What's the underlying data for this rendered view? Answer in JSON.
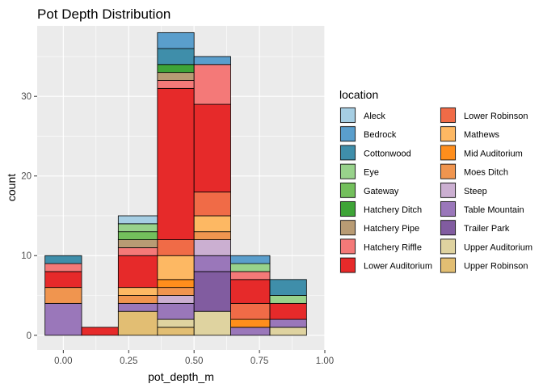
{
  "chart_data": {
    "type": "bar",
    "subtype": "stacked-histogram",
    "title": "Pot Depth Distribution",
    "xlabel": "pot_depth_m",
    "ylabel": "count",
    "xlim": [
      -0.1,
      1.0
    ],
    "ylim": [
      -1.85,
      38.85
    ],
    "x_ticks": [
      {
        "value": 0.0,
        "label": "0.00"
      },
      {
        "value": 0.25,
        "label": "0.25"
      },
      {
        "value": 0.5,
        "label": "0.50"
      },
      {
        "value": 0.75,
        "label": "0.75"
      },
      {
        "value": 1.0,
        "label": "1.00"
      }
    ],
    "y_ticks": [
      {
        "value": 0,
        "label": "0"
      },
      {
        "value": 10,
        "label": "10"
      },
      {
        "value": 20,
        "label": "20"
      },
      {
        "value": 30,
        "label": "30"
      }
    ],
    "grid": true,
    "legend_title": "location",
    "legend_position": "right",
    "legend_columns": 2,
    "series": [
      {
        "name": "Aleck",
        "color": "#A6CEE3"
      },
      {
        "name": "Bedrock",
        "color": "#5A9ECC"
      },
      {
        "name": "Cottonwood",
        "color": "#3F8EAA"
      },
      {
        "name": "Eye",
        "color": "#98D28B"
      },
      {
        "name": "Gateway",
        "color": "#73BF5C"
      },
      {
        "name": "Hatchery Ditch",
        "color": "#3EA437"
      },
      {
        "name": "Hatchery Pipe",
        "color": "#B89B74"
      },
      {
        "name": "Hatchery Riffle",
        "color": "#F47978"
      },
      {
        "name": "Lower Auditorium",
        "color": "#E62A2A"
      },
      {
        "name": "Lower Robinson",
        "color": "#F06B47"
      },
      {
        "name": "Mathews",
        "color": "#FDB863"
      },
      {
        "name": "Mid Auditorium",
        "color": "#FF8E1C"
      },
      {
        "name": "Moes Ditch",
        "color": "#F0954F"
      },
      {
        "name": "Steep",
        "color": "#CBAFD1"
      },
      {
        "name": "Table Mountain",
        "color": "#9A77BA"
      },
      {
        "name": "Trailer Park",
        "color": "#815CA0"
      },
      {
        "name": "Upper Auditorium",
        "color": "#DFD3A0"
      },
      {
        "name": "Upper Robinson",
        "color": "#E2BE73"
      }
    ],
    "bins": [
      {
        "x0": -0.07,
        "x1": 0.07,
        "stacks": [
          {
            "series": "Table Mountain",
            "count": 4
          },
          {
            "series": "Moes Ditch",
            "count": 2
          },
          {
            "series": "Lower Auditorium",
            "count": 2
          },
          {
            "series": "Hatchery Riffle",
            "count": 1
          },
          {
            "series": "Cottonwood",
            "count": 1
          }
        ]
      },
      {
        "x0": 0.07,
        "x1": 0.21,
        "stacks": [
          {
            "series": "Lower Auditorium",
            "count": 1
          }
        ]
      },
      {
        "x0": 0.21,
        "x1": 0.36,
        "stacks": [
          {
            "series": "Upper Robinson",
            "count": 3
          },
          {
            "series": "Table Mountain",
            "count": 1
          },
          {
            "series": "Moes Ditch",
            "count": 1
          },
          {
            "series": "Mathews",
            "count": 1
          },
          {
            "series": "Lower Auditorium",
            "count": 4
          },
          {
            "series": "Hatchery Riffle",
            "count": 1
          },
          {
            "series": "Hatchery Pipe",
            "count": 1
          },
          {
            "series": "Gateway",
            "count": 1
          },
          {
            "series": "Eye",
            "count": 1
          },
          {
            "series": "Aleck",
            "count": 1
          }
        ]
      },
      {
        "x0": 0.36,
        "x1": 0.5,
        "stacks": [
          {
            "series": "Upper Robinson",
            "count": 1
          },
          {
            "series": "Upper Auditorium",
            "count": 1
          },
          {
            "series": "Table Mountain",
            "count": 2
          },
          {
            "series": "Steep",
            "count": 1
          },
          {
            "series": "Moes Ditch",
            "count": 1
          },
          {
            "series": "Mid Auditorium",
            "count": 1
          },
          {
            "series": "Mathews",
            "count": 3
          },
          {
            "series": "Lower Robinson",
            "count": 2
          },
          {
            "series": "Lower Auditorium",
            "count": 19
          },
          {
            "series": "Hatchery Riffle",
            "count": 1
          },
          {
            "series": "Hatchery Pipe",
            "count": 1
          },
          {
            "series": "Hatchery Ditch",
            "count": 1
          },
          {
            "series": "Cottonwood",
            "count": 2
          },
          {
            "series": "Bedrock",
            "count": 2
          }
        ]
      },
      {
        "x0": 0.5,
        "x1": 0.64,
        "stacks": [
          {
            "series": "Upper Auditorium",
            "count": 3
          },
          {
            "series": "Trailer Park",
            "count": 5
          },
          {
            "series": "Table Mountain",
            "count": 2
          },
          {
            "series": "Steep",
            "count": 2
          },
          {
            "series": "Moes Ditch",
            "count": 1
          },
          {
            "series": "Mathews",
            "count": 2
          },
          {
            "series": "Lower Robinson",
            "count": 3
          },
          {
            "series": "Lower Auditorium",
            "count": 11
          },
          {
            "series": "Hatchery Riffle",
            "count": 5
          },
          {
            "series": "Bedrock",
            "count": 1
          }
        ]
      },
      {
        "x0": 0.64,
        "x1": 0.79,
        "stacks": [
          {
            "series": "Table Mountain",
            "count": 1
          },
          {
            "series": "Mid Auditorium",
            "count": 1
          },
          {
            "series": "Lower Robinson",
            "count": 2
          },
          {
            "series": "Lower Auditorium",
            "count": 3
          },
          {
            "series": "Hatchery Riffle",
            "count": 1
          },
          {
            "series": "Eye",
            "count": 1
          },
          {
            "series": "Bedrock",
            "count": 1
          }
        ]
      },
      {
        "x0": 0.79,
        "x1": 0.93,
        "stacks": [
          {
            "series": "Upper Auditorium",
            "count": 1
          },
          {
            "series": "Table Mountain",
            "count": 1
          },
          {
            "series": "Lower Auditorium",
            "count": 2
          },
          {
            "series": "Hatchery Riffle",
            "count": 0
          },
          {
            "series": "Eye",
            "count": 1
          },
          {
            "series": "Cottonwood",
            "count": 2
          }
        ]
      }
    ]
  }
}
